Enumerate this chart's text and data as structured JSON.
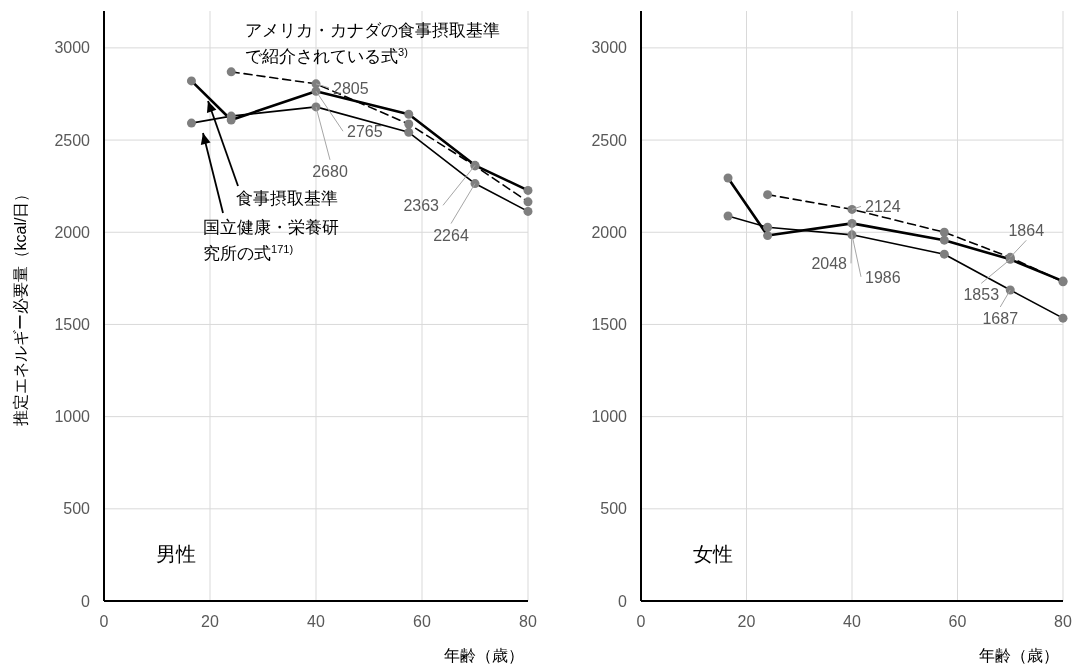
{
  "chart_data": [
    {
      "type": "line",
      "x": [
        16.5,
        24,
        40,
        57.5,
        70,
        80
      ],
      "xlim": [
        0,
        80
      ],
      "xticks": [
        0,
        20,
        40,
        60,
        80
      ],
      "ylim": [
        0,
        3200
      ],
      "yticks": [
        0,
        500,
        1000,
        1500,
        2000,
        2500,
        3000
      ],
      "xlabel": "年齢（歳）",
      "ylabel": "推定エネルギー必要量（kcal/日）",
      "grid": true,
      "marker": "circle",
      "annotations": [
        "男性"
      ],
      "series": [
        {
          "name": "食事摂取基準",
          "color": "#000000",
          "values": [
            2821,
            2609,
            2765,
            2640,
            2363,
            2227
          ],
          "value_labels": [
            null,
            null,
            "2765",
            null,
            "2363",
            null
          ]
        },
        {
          "name": "国立健康・栄養研究所の式$^{171)}$",
          "color": "#000000",
          "values": [
            2592,
            2630,
            2680,
            2542,
            2264,
            2113
          ],
          "value_labels": [
            null,
            null,
            "2680",
            null,
            "2264",
            null
          ]
        },
        {
          "name": "アメリカ・カナダの食事摂取基準で紹介されている式$^{3)}$",
          "color": "#000000",
          "line_style": "dashed",
          "values": [
            null,
            2870,
            2805,
            2587,
            2360,
            2165
          ],
          "value_labels": [
            null,
            null,
            "2805",
            null,
            null,
            null
          ]
        }
      ]
    },
    {
      "type": "line",
      "x": [
        16.5,
        24,
        40,
        57.5,
        70,
        80
      ],
      "xlim": [
        0,
        80
      ],
      "xticks": [
        0,
        20,
        40,
        60,
        80
      ],
      "ylim": [
        0,
        3200
      ],
      "yticks": [
        0,
        500,
        1000,
        1500,
        2000,
        2500,
        3000
      ],
      "xlabel": "年齢（歳）",
      "grid": true,
      "marker": "circle",
      "annotations": [
        "女性"
      ],
      "series": [
        {
          "color": "#000000",
          "values": [
            2294,
            1982,
            2048,
            1957,
            1853,
            1735
          ],
          "value_labels": [
            null,
            null,
            "2048",
            null,
            "1853",
            null
          ]
        },
        {
          "color": "#000000",
          "values": [
            2088,
            2027,
            1986,
            1881,
            1687,
            1534
          ],
          "value_labels": [
            null,
            null,
            "1986",
            null,
            "1687",
            null
          ]
        },
        {
          "color": "#000000",
          "line_style": "dashed",
          "values": [
            null,
            2204,
            2124,
            2000,
            1864,
            1731
          ],
          "value_labels": [
            null,
            null,
            "2124",
            null,
            "1864",
            null
          ]
        }
      ]
    }
  ]
}
